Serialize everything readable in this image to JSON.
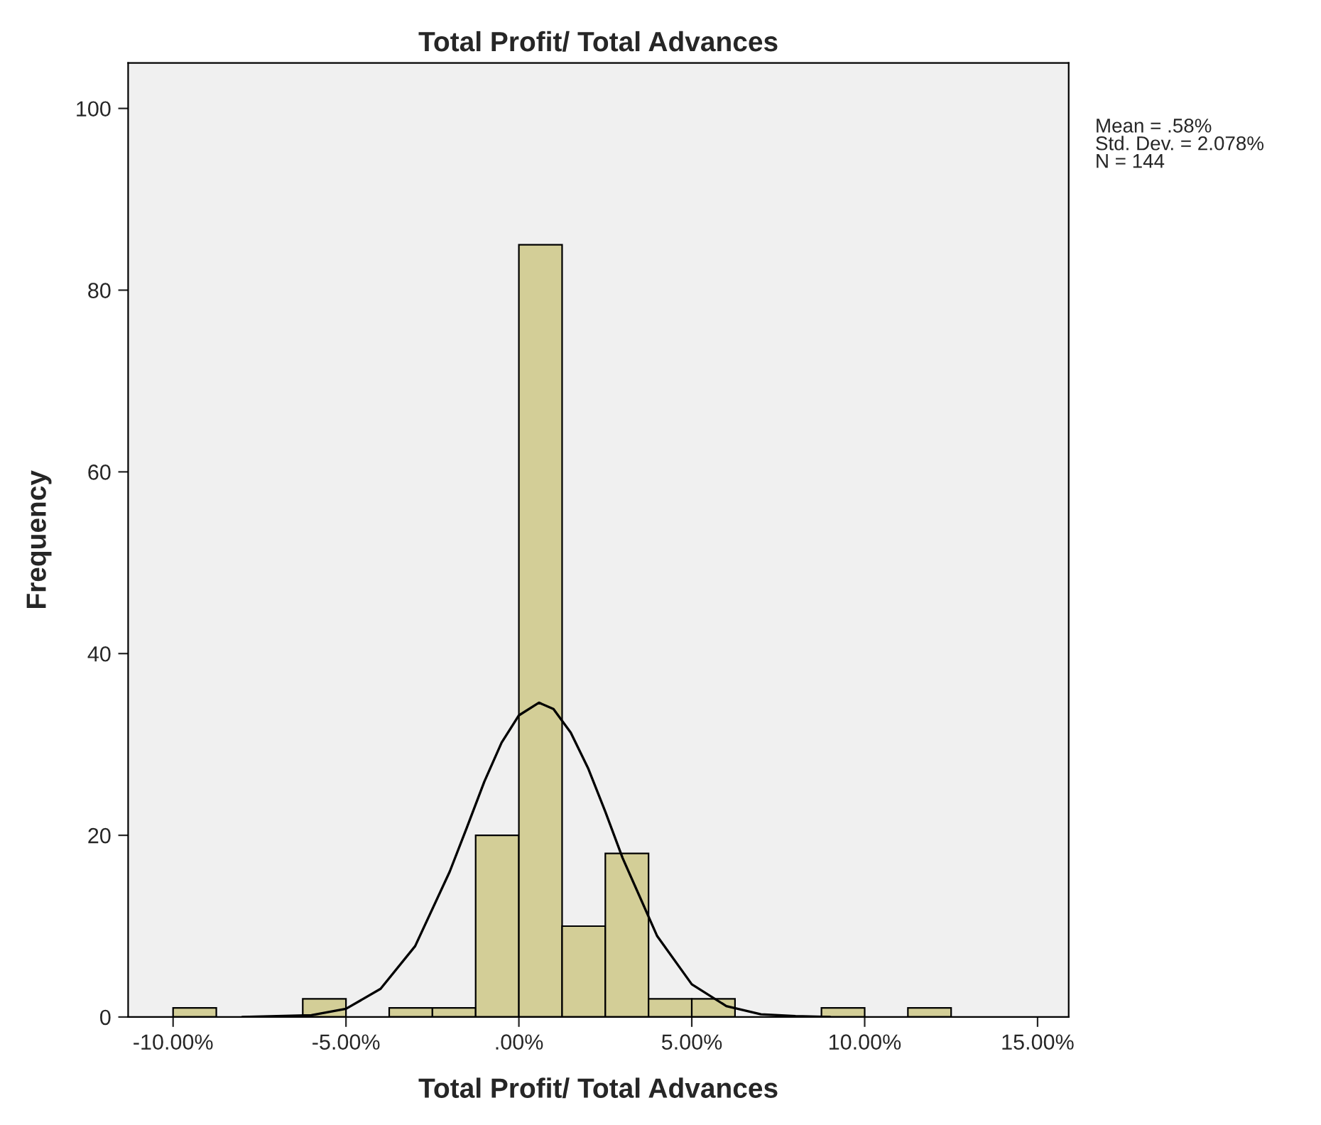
{
  "chart_data": {
    "type": "histogram",
    "title": "Total Profit/ Total Advances",
    "xlabel": "Total Profit/ Total Advances",
    "ylabel": "Frequency",
    "bins": [
      -10,
      -8.75,
      -7.5,
      -6.25,
      -5,
      -3.75,
      -2.5,
      -1.25,
      0,
      1.25,
      2.5,
      3.75,
      5,
      6.25,
      7.5,
      8.75,
      10,
      11.25,
      12.5
    ],
    "values": [
      1,
      0,
      0,
      2,
      0,
      1,
      1,
      20,
      85,
      10,
      18,
      2,
      2,
      0,
      0,
      1,
      0,
      1
    ],
    "color": "#d3ce97",
    "series": [
      {
        "type": "line",
        "color": "#000000",
        "x": [
          -8,
          -6,
          -5,
          -4,
          -3,
          -2,
          -1.5,
          -1,
          -0.5,
          0,
          0.58,
          1,
          1.5,
          2,
          2.5,
          3,
          4,
          5,
          6,
          7,
          8,
          9
        ],
        "values": [
          0,
          0.2,
          0.9,
          3.1,
          7.8,
          16.0,
          20.9,
          25.9,
          30.2,
          33.2,
          34.6,
          33.9,
          31.3,
          27.4,
          22.6,
          17.5,
          8.9,
          3.6,
          1.2,
          0.3,
          0.1,
          0
        ]
      }
    ],
    "xlim": [
      -11.3,
      15.9
    ],
    "ylim": [
      0,
      105
    ],
    "xticks": [
      {
        "value": -10,
        "label": "-10.00%"
      },
      {
        "value": -5,
        "label": "-5.00%"
      },
      {
        "value": 0,
        "label": ".00%"
      },
      {
        "value": 5,
        "label": "5.00%"
      },
      {
        "value": 10,
        "label": "10.00%"
      },
      {
        "value": 15,
        "label": "15.00%"
      }
    ],
    "yticks": [
      0,
      20,
      40,
      60,
      80,
      100
    ],
    "grid": false,
    "legend": false,
    "annotations": [
      "Mean = .58%\nStd. Dev. = 2.078%\nN = 144"
    ]
  }
}
